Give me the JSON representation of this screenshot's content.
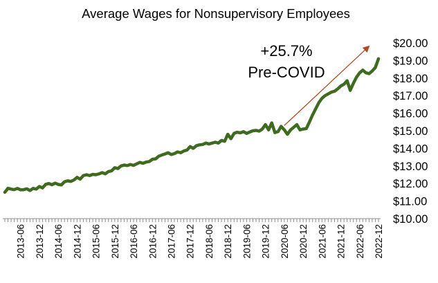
{
  "chart_data": {
    "type": "line",
    "title": "Average Wages for Nonsupervisory Employees",
    "xlabel": "",
    "ylabel": "",
    "x_range": [
      "2013-01",
      "2022-12"
    ],
    "ylim": [
      10,
      20
    ],
    "y_axis_position": "right",
    "grid": false,
    "legend": "none",
    "y_tick_labels": [
      "$10.00",
      "$11.00",
      "$12.00",
      "$13.00",
      "$14.00",
      "$15.00",
      "$16.00",
      "$17.00",
      "$18.00",
      "$19.00",
      "$20.00"
    ],
    "x_tick_labels": [
      "2013-06",
      "2013-12",
      "2014-06",
      "2014-12",
      "2015-06",
      "2015-12",
      "2016-06",
      "2016-12",
      "2017-06",
      "2017-12",
      "2018-06",
      "2018-12",
      "2019-06",
      "2019-12",
      "2020-06",
      "2020-12",
      "2021-06",
      "2021-12",
      "2022-06",
      "2022-12"
    ],
    "series": [
      {
        "color": "#3e6b1f",
        "x": [
          "2013-01",
          "2013-02",
          "2013-03",
          "2013-04",
          "2013-05",
          "2013-06",
          "2013-07",
          "2013-08",
          "2013-09",
          "2013-10",
          "2013-11",
          "2013-12",
          "2014-01",
          "2014-02",
          "2014-03",
          "2014-04",
          "2014-05",
          "2014-06",
          "2014-07",
          "2014-08",
          "2014-09",
          "2014-10",
          "2014-11",
          "2014-12",
          "2015-01",
          "2015-02",
          "2015-03",
          "2015-04",
          "2015-05",
          "2015-06",
          "2015-07",
          "2015-08",
          "2015-09",
          "2015-10",
          "2015-11",
          "2015-12",
          "2016-01",
          "2016-02",
          "2016-03",
          "2016-04",
          "2016-05",
          "2016-06",
          "2016-07",
          "2016-08",
          "2016-09",
          "2016-10",
          "2016-11",
          "2016-12",
          "2017-01",
          "2017-02",
          "2017-03",
          "2017-04",
          "2017-05",
          "2017-06",
          "2017-07",
          "2017-08",
          "2017-09",
          "2017-10",
          "2017-11",
          "2017-12",
          "2018-01",
          "2018-02",
          "2018-03",
          "2018-04",
          "2018-05",
          "2018-06",
          "2018-07",
          "2018-08",
          "2018-09",
          "2018-10",
          "2018-11",
          "2018-12",
          "2019-01",
          "2019-02",
          "2019-03",
          "2019-04",
          "2019-05",
          "2019-06",
          "2019-07",
          "2019-08",
          "2019-09",
          "2019-10",
          "2019-11",
          "2019-12",
          "2020-01",
          "2020-02",
          "2020-03",
          "2020-04",
          "2020-05",
          "2020-06",
          "2020-07",
          "2020-08",
          "2020-09",
          "2020-10",
          "2020-11",
          "2020-12",
          "2021-01",
          "2021-02",
          "2021-03",
          "2021-04",
          "2021-05",
          "2021-06",
          "2021-07",
          "2021-08",
          "2021-09",
          "2021-10",
          "2021-11",
          "2021-12",
          "2022-01",
          "2022-02",
          "2022-03",
          "2022-04",
          "2022-05",
          "2022-06",
          "2022-07",
          "2022-08",
          "2022-09",
          "2022-10",
          "2022-11",
          "2022-12"
        ],
        "y": [
          11.5,
          11.73,
          11.68,
          11.65,
          11.72,
          11.64,
          11.65,
          11.7,
          11.6,
          11.72,
          11.68,
          11.83,
          11.75,
          11.95,
          12.0,
          11.93,
          12.02,
          11.95,
          11.92,
          12.1,
          12.15,
          12.12,
          12.2,
          12.35,
          12.25,
          12.45,
          12.5,
          12.45,
          12.52,
          12.5,
          12.55,
          12.62,
          12.55,
          12.68,
          12.72,
          12.9,
          12.85,
          13.0,
          13.05,
          13.02,
          13.08,
          13.03,
          13.12,
          13.2,
          13.15,
          13.22,
          13.25,
          13.38,
          13.4,
          13.55,
          13.62,
          13.68,
          13.75,
          13.65,
          13.7,
          13.8,
          13.75,
          13.85,
          13.9,
          14.1,
          14.0,
          14.15,
          14.2,
          14.22,
          14.3,
          14.25,
          14.3,
          14.35,
          14.3,
          14.45,
          14.4,
          14.8,
          14.55,
          14.85,
          14.92,
          14.88,
          14.95,
          14.85,
          14.93,
          15.0,
          15.02,
          14.98,
          15.1,
          15.35,
          15.05,
          15.45,
          14.9,
          14.95,
          15.25,
          15.05,
          14.8,
          15.05,
          15.2,
          15.35,
          15.05,
          15.1,
          15.12,
          15.5,
          15.9,
          16.25,
          16.6,
          16.85,
          17.0,
          17.1,
          17.2,
          17.25,
          17.38,
          17.55,
          17.65,
          17.85,
          17.3,
          17.7,
          18.05,
          18.3,
          18.45,
          18.3,
          18.25,
          18.4,
          18.6,
          19.1
        ]
      }
    ],
    "annotations": [
      {
        "lines": [
          "+25.7%",
          "Pre-COVID"
        ],
        "arrow_color": "#b04a22",
        "arrow_from": [
          "2020-06",
          15.3
        ],
        "arrow_to": [
          "2022-12",
          19.8
        ]
      }
    ]
  }
}
